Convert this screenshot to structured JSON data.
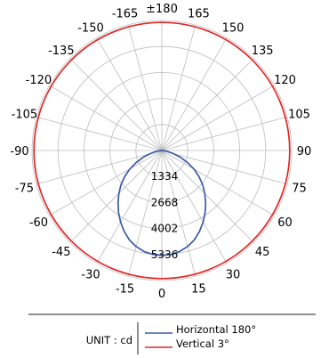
{
  "chart_data": {
    "type": "polar-line",
    "unit_label": "UNIT : cd",
    "angle_labels": [
      {
        "deg": 180,
        "label": "±180"
      },
      {
        "deg": 165,
        "label": "165"
      },
      {
        "deg": -165,
        "label": "-165"
      },
      {
        "deg": 150,
        "label": "150"
      },
      {
        "deg": -150,
        "label": "-150"
      },
      {
        "deg": 135,
        "label": "135"
      },
      {
        "deg": -135,
        "label": "-135"
      },
      {
        "deg": 120,
        "label": "120"
      },
      {
        "deg": -120,
        "label": "-120"
      },
      {
        "deg": 105,
        "label": "105"
      },
      {
        "deg": -105,
        "label": "-105"
      },
      {
        "deg": 90,
        "label": "90"
      },
      {
        "deg": -90,
        "label": "-90"
      },
      {
        "deg": 75,
        "label": "75"
      },
      {
        "deg": -75,
        "label": "-75"
      },
      {
        "deg": 60,
        "label": "60"
      },
      {
        "deg": -60,
        "label": "-60"
      },
      {
        "deg": 45,
        "label": "45"
      },
      {
        "deg": -45,
        "label": "-45"
      },
      {
        "deg": 30,
        "label": "30"
      },
      {
        "deg": -30,
        "label": "-30"
      },
      {
        "deg": 15,
        "label": "15"
      },
      {
        "deg": -15,
        "label": "-15"
      },
      {
        "deg": 0,
        "label": "0"
      }
    ],
    "radial_ticks": [
      "1334",
      "2668",
      "4002",
      "5336"
    ],
    "radial_values": [
      1334,
      2668,
      4002,
      5336
    ],
    "radial_max": 6670,
    "series": [
      {
        "name": "Horizontal 180°",
        "color": "#3a5ba8",
        "angles": [
          -90,
          -85,
          -80,
          -75,
          -70,
          -65,
          -60,
          -55,
          -50,
          -45,
          -40,
          -35,
          -30,
          -25,
          -20,
          -15,
          -10,
          -5,
          0,
          5,
          10,
          15,
          20,
          25,
          30,
          35,
          40,
          45,
          50,
          55,
          60,
          65,
          70,
          75,
          80,
          85,
          90
        ],
        "values": [
          0,
          140,
          290,
          600,
          1020,
          1450,
          1900,
          2330,
          2740,
          3120,
          3500,
          3880,
          4240,
          4580,
          4880,
          5100,
          5260,
          5350,
          5380,
          5350,
          5260,
          5100,
          4880,
          4580,
          4240,
          3880,
          3500,
          3120,
          2740,
          2330,
          1900,
          1450,
          1020,
          600,
          290,
          140,
          0
        ]
      },
      {
        "name": "Vertical 3°",
        "color": "#e02727",
        "angles": [
          -180,
          180
        ],
        "values": [
          6570,
          6570
        ]
      }
    ]
  }
}
